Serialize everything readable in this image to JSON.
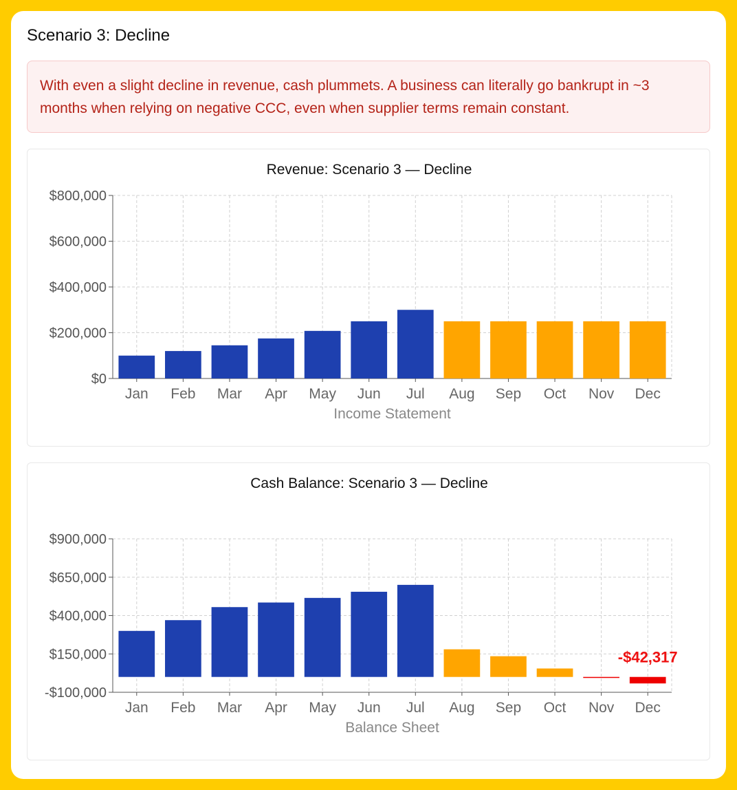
{
  "title": "Scenario 3: Decline",
  "alert": "With even a slight decline in revenue, cash plummets. A business can literally go bankrupt in ~3 months when relying on negative CCC, even when supplier terms remain constant.",
  "colors": {
    "actual": "#1e40af",
    "projected": "#ffa500",
    "negative": "#ee0000"
  },
  "chart_data": [
    {
      "type": "bar",
      "title": "Revenue: Scenario 3 — Decline",
      "xlabel": "Income Statement",
      "ylabel": "",
      "categories": [
        "Jan",
        "Feb",
        "Mar",
        "Apr",
        "May",
        "Jun",
        "Jul",
        "Aug",
        "Sep",
        "Oct",
        "Nov",
        "Dec"
      ],
      "values": [
        100000,
        120000,
        145000,
        175000,
        208000,
        250000,
        300000,
        250000,
        250000,
        250000,
        250000,
        250000
      ],
      "ylim": [
        0,
        800000
      ],
      "yticks": [
        0,
        200000,
        400000,
        600000,
        800000
      ],
      "ytick_labels": [
        "$0",
        "$200,000",
        "$400,000",
        "$600,000",
        "$800,000"
      ],
      "projected_from_index": 7,
      "grid": true
    },
    {
      "type": "bar",
      "title": "Cash Balance: Scenario 3 — Decline",
      "xlabel": "Balance Sheet",
      "ylabel": "",
      "categories": [
        "Jan",
        "Feb",
        "Mar",
        "Apr",
        "May",
        "Jun",
        "Jul",
        "Aug",
        "Sep",
        "Oct",
        "Nov",
        "Dec"
      ],
      "values": [
        300000,
        370000,
        455000,
        485000,
        515000,
        555000,
        600000,
        180000,
        135000,
        55000,
        -3000,
        -42317
      ],
      "ylim": [
        -100000,
        900000
      ],
      "yticks": [
        -100000,
        150000,
        400000,
        650000,
        900000
      ],
      "ytick_labels": [
        "-$100,000",
        "$150,000",
        "$400,000",
        "$650,000",
        "$900,000"
      ],
      "projected_from_index": 7,
      "grid": true,
      "annotation": {
        "index": 11,
        "text": "-$42,317"
      }
    }
  ]
}
